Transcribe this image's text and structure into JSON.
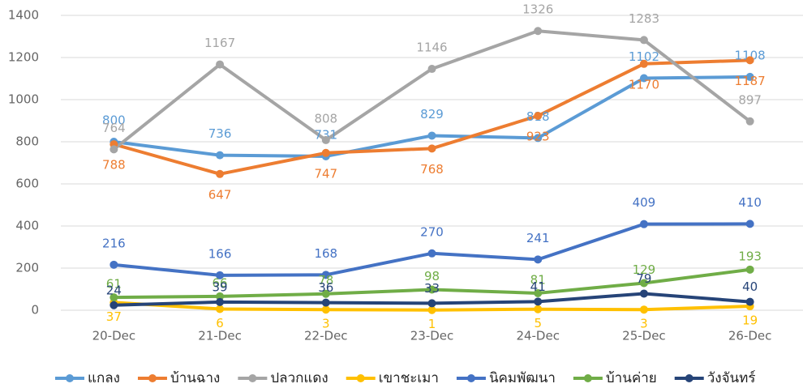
{
  "chart_data": {
    "type": "line",
    "categories": [
      "20-Dec",
      "21-Dec",
      "22-Dec",
      "23-Dec",
      "24-Dec",
      "25-Dec",
      "26-Dec"
    ],
    "series": [
      {
        "name": "แกลง",
        "color": "#5B9BD5",
        "values": [
          800,
          736,
          731,
          829,
          818,
          1102,
          1108
        ]
      },
      {
        "name": "บ้านฉาง",
        "color": "#ED7D31",
        "values": [
          788,
          647,
          747,
          768,
          923,
          1170,
          1187
        ]
      },
      {
        "name": "ปลวกแดง",
        "color": "#A5A5A5",
        "values": [
          764,
          1167,
          808,
          1146,
          1326,
          1283,
          897
        ]
      },
      {
        "name": "เขาชะเมา",
        "color": "#FFC000",
        "values": [
          37,
          6,
          3,
          1,
          5,
          3,
          19
        ]
      },
      {
        "name": "นิคมพัฒนา",
        "color": "#4472C4",
        "values": [
          216,
          166,
          168,
          270,
          241,
          409,
          410
        ]
      },
      {
        "name": "บ้านค่าย",
        "color": "#70AD47",
        "values": [
          61,
          66,
          78,
          98,
          81,
          129,
          193
        ]
      },
      {
        "name": "วังจันทร์",
        "color": "#264478",
        "values": [
          24,
          39,
          36,
          33,
          41,
          79,
          40
        ]
      }
    ],
    "ylim": [
      0,
      1400
    ],
    "yticks": [
      0,
      200,
      400,
      600,
      800,
      1000,
      1200,
      1400
    ],
    "grid": true,
    "legend": "bottom"
  }
}
